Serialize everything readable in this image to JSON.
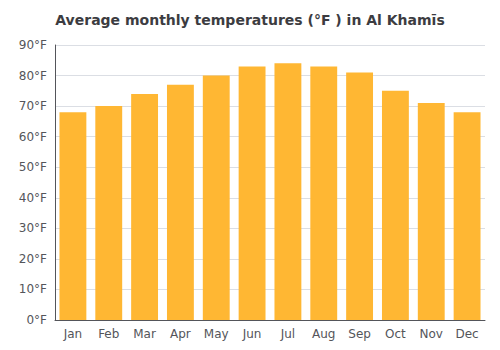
{
  "chart_data": {
    "type": "bar",
    "title": "Average monthly temperatures (°F ) in Al Khamīs",
    "categories": [
      "Jan",
      "Feb",
      "Mar",
      "Apr",
      "May",
      "Jun",
      "Jul",
      "Aug",
      "Sep",
      "Oct",
      "Nov",
      "Dec"
    ],
    "values": [
      68,
      70,
      74,
      77,
      80,
      83,
      84,
      83,
      81,
      75,
      71,
      68
    ],
    "color": "#FFB733",
    "ylim": [
      0,
      90
    ],
    "yticks": [
      {
        "value": 0,
        "label": "0°F"
      },
      {
        "value": 10,
        "label": "10°F"
      },
      {
        "value": 20,
        "label": "20°F"
      },
      {
        "value": 30,
        "label": "30°F"
      },
      {
        "value": 40,
        "label": "40°F"
      },
      {
        "value": 50,
        "label": "50°F"
      },
      {
        "value": 60,
        "label": "60°F"
      },
      {
        "value": 70,
        "label": "70°F"
      },
      {
        "value": 80,
        "label": "80°F"
      },
      {
        "value": 90,
        "label": "90°F"
      }
    ],
    "grid": true
  }
}
